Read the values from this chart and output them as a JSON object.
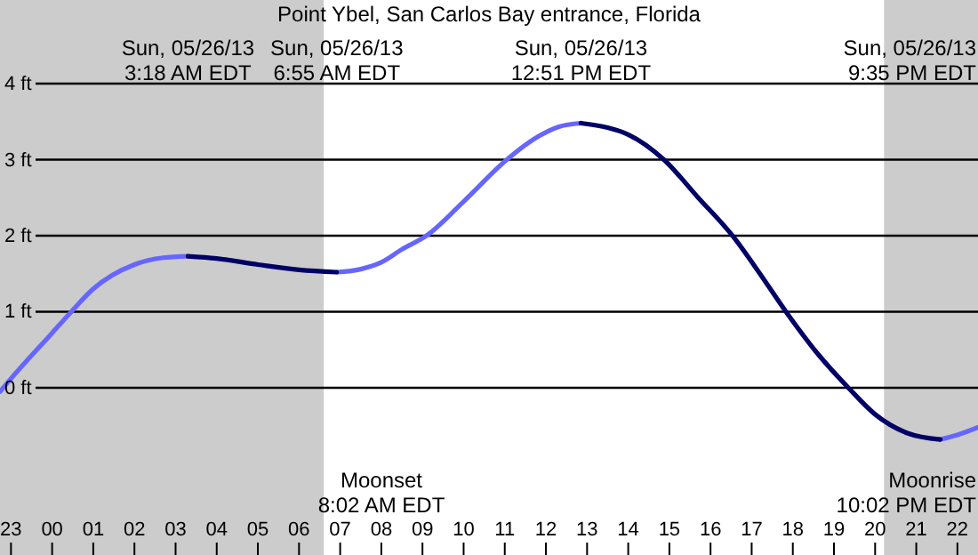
{
  "chart_data": {
    "type": "line",
    "title": "Point Ybel, San Carlos Bay entrance, Florida",
    "xlim": [
      "--05-25T22:44",
      "--05-26T22:30"
    ],
    "ylim": [
      -2.2,
      5.1
    ],
    "xticks": [
      {
        "value": "--05-25T23:00",
        "label": "23"
      },
      {
        "value": "--05-26T00:00",
        "label": "00"
      },
      {
        "value": "--05-26T01:00",
        "label": "01"
      },
      {
        "value": "--05-26T02:00",
        "label": "02"
      },
      {
        "value": "--05-26T03:00",
        "label": "03"
      },
      {
        "value": "--05-26T04:00",
        "label": "04"
      },
      {
        "value": "--05-26T05:00",
        "label": "05"
      },
      {
        "value": "--05-26T06:00",
        "label": "06"
      },
      {
        "value": "--05-26T07:00",
        "label": "07"
      },
      {
        "value": "--05-26T08:00",
        "label": "08"
      },
      {
        "value": "--05-26T09:00",
        "label": "09"
      },
      {
        "value": "--05-26T10:00",
        "label": "10"
      },
      {
        "value": "--05-26T11:00",
        "label": "11"
      },
      {
        "value": "--05-26T12:00",
        "label": "12"
      },
      {
        "value": "--05-26T13:00",
        "label": "13"
      },
      {
        "value": "--05-26T14:00",
        "label": "14"
      },
      {
        "value": "--05-26T15:00",
        "label": "15"
      },
      {
        "value": "--05-26T16:00",
        "label": "16"
      },
      {
        "value": "--05-26T17:00",
        "label": "17"
      },
      {
        "value": "--05-26T18:00",
        "label": "18"
      },
      {
        "value": "--05-26T19:00",
        "label": "19"
      },
      {
        "value": "--05-26T20:00",
        "label": "20"
      },
      {
        "value": "--05-26T21:00",
        "label": "21"
      },
      {
        "value": "--05-26T22:00",
        "label": "22"
      }
    ],
    "yticks": [
      {
        "value": 0,
        "label": "0 ft"
      },
      {
        "value": 1,
        "label": "1 ft"
      },
      {
        "value": 2,
        "label": "2 ft"
      },
      {
        "value": 3,
        "label": "3 ft"
      },
      {
        "value": 4,
        "label": "4 ft"
      }
    ],
    "grid": "y",
    "series": [
      {
        "color": "#6666ff",
        "x": [
          "--05-25T22:44",
          "--05-25T23:00",
          "--05-26T00:00",
          "--05-26T00:28",
          "--05-26T01:00",
          "--05-26T02:00",
          "--05-26T02:42",
          "--05-26T03:18",
          "--05-26T05:00",
          "--05-26T06:55",
          "--05-26T07:30",
          "--05-26T08:00",
          "--05-26T08:30",
          "--05-26T09:06",
          "--05-26T10:00",
          "--05-26T11:03",
          "--05-26T11:48",
          "--05-26T12:18",
          "--05-26T12:51",
          "--05-26T17:00",
          "--05-26T21:35",
          "--05-26T22:00",
          "--05-26T22:30"
        ],
        "values": [
          -0.05,
          0.12,
          0.72,
          1.0,
          1.3,
          1.62,
          1.71,
          1.73,
          null,
          1.52,
          1.56,
          1.65,
          1.82,
          2.0,
          2.45,
          3.0,
          3.3,
          3.43,
          3.48,
          null,
          -0.68,
          -0.62,
          -0.52
        ]
      },
      {
        "color": "#000066",
        "x": [
          "--05-26T03:18",
          "--05-26T04:00",
          "--05-26T05:00",
          "--05-26T06:00",
          "--05-26T06:55",
          "--05-26T10:00",
          "--05-26T12:51",
          "--05-26T13:30",
          "--05-26T14:00",
          "--05-26T14:52",
          "--05-26T15:42",
          "--05-26T16:32",
          "--05-26T17:12",
          "--05-26T17:50",
          "--05-26T18:36",
          "--05-26T19:21",
          "--05-26T20:00",
          "--05-26T20:48",
          "--05-26T21:35"
        ],
        "values": [
          1.73,
          1.7,
          1.62,
          1.55,
          1.52,
          null,
          3.48,
          3.42,
          3.33,
          3.0,
          2.5,
          2.0,
          1.5,
          1.0,
          0.45,
          0.0,
          -0.35,
          -0.6,
          -0.68
        ]
      }
    ],
    "bands": [
      {
        "axis": "x",
        "from": "--05-25T22:44",
        "to": "--05-26T06:36",
        "color": "#cccccc"
      },
      {
        "axis": "x",
        "from": "--05-26T20:13",
        "to": "--05-26T22:30",
        "color": "#cccccc"
      }
    ],
    "annotations": [
      "Sun, 05/26/13\n3:18 AM EDT",
      "Sun, 05/26/13\n6:55 AM EDT",
      "Sun, 05/26/13\n12:51 PM EDT",
      "Sun, 05/26/13\n9:35 PM EDT",
      "Moonset\n8:02 AM EDT",
      "Moonrise\n10:02 PM EDT"
    ]
  }
}
